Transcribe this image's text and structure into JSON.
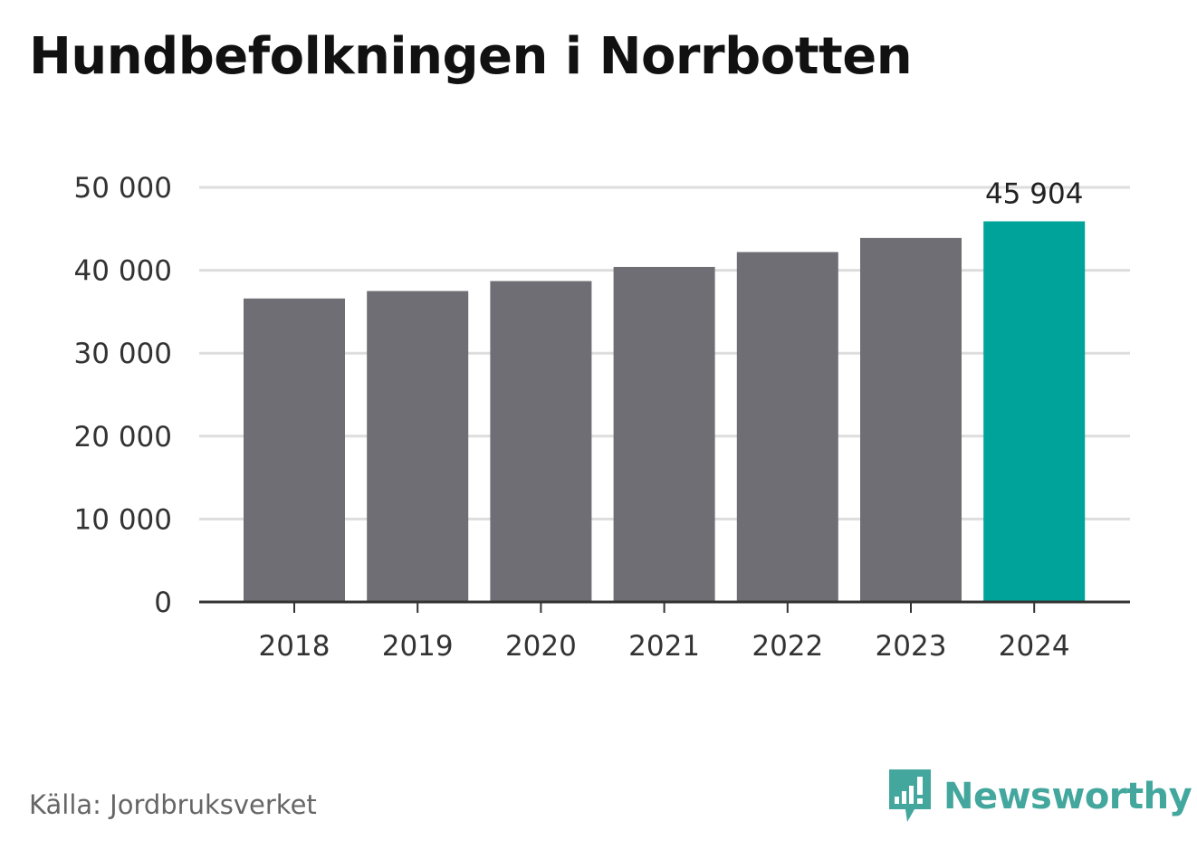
{
  "chart_data": {
    "type": "bar",
    "title": "Hundbefolkningen i Norrbotten",
    "categories": [
      "2018",
      "2019",
      "2020",
      "2021",
      "2022",
      "2023",
      "2024"
    ],
    "values": [
      36600,
      37500,
      38700,
      40400,
      42200,
      43900,
      45904
    ],
    "highlight_index": 6,
    "highlight_label": "45 904",
    "ylim": [
      0,
      50000
    ],
    "yticks": [
      0,
      10000,
      20000,
      30000,
      40000,
      50000
    ],
    "ytick_labels": [
      "0",
      "10 000",
      "20 000",
      "30 000",
      "40 000",
      "50 000"
    ],
    "grid": true,
    "colors": {
      "bar": "#6f6e74",
      "highlight": "#00a39a",
      "grid": "#dddddd",
      "axis": "#333333"
    }
  },
  "footer": {
    "source": "Källa: Jordbruksverket",
    "brand": "Newsworthy",
    "brand_color": "#43a79e",
    "brand_icon": "newsworthy-logo-icon"
  }
}
